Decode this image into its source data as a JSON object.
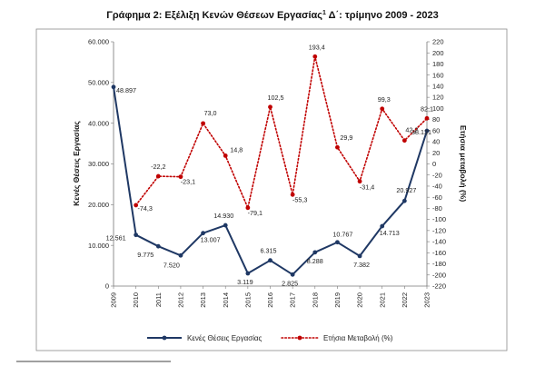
{
  "chart_data": {
    "type": "line",
    "title": "Γράφημα 2: Εξέλιξη Κενών Θέσεων Εργασίας",
    "title_sup": "1",
    "title_tail": " Δ΄: τρίμηνο 2009 - 2023",
    "ylabel": "Κενές Θέσεις Εργασίας",
    "y2label": "Ετήσια μεταβολή (%)",
    "x": [
      "2009",
      "2010",
      "2011",
      "2012",
      "2013",
      "2014",
      "2015",
      "2016",
      "2017",
      "2018",
      "2019",
      "2020",
      "2021",
      "2022",
      "2023"
    ],
    "ylim": [
      0,
      60000
    ],
    "y_ticks": [
      0,
      10000,
      20000,
      30000,
      40000,
      50000,
      60000
    ],
    "y_tick_labels": [
      "0",
      "10.000",
      "20.000",
      "30.000",
      "40.000",
      "50.000",
      "60.000"
    ],
    "y2lim": [
      -220,
      220
    ],
    "y2_ticks": [
      -220,
      -200,
      -180,
      -160,
      -140,
      -120,
      -100,
      -80,
      -60,
      -40,
      -20,
      0,
      20,
      40,
      60,
      80,
      100,
      120,
      140,
      160,
      180,
      200,
      220
    ],
    "y2_tick_labels": [
      "-220",
      "-200",
      "-180",
      "-160",
      "-140",
      "-120",
      "-100",
      "-80",
      "-60",
      "-40",
      "-20",
      "0",
      "20",
      "40",
      "60",
      "80",
      "100",
      "120",
      "140",
      "160",
      "180",
      "200",
      "220"
    ],
    "grid": false,
    "legend_position": "bottom",
    "series": [
      {
        "name": "Κενές Θέσεις Εργασίας",
        "axis": "left",
        "style": "solid",
        "color": "#1f3864",
        "values": [
          48897,
          12561,
          9775,
          7520,
          13007,
          14930,
          3119,
          6315,
          2825,
          8288,
          10767,
          7382,
          14713,
          20927,
          38131
        ],
        "labels": [
          "48.897",
          "12.561",
          "9.775",
          "7.520",
          "13.007",
          "14.930",
          "3.119",
          "6.315",
          "2.825",
          "8.288",
          "10.767",
          "7.382",
          "14.713",
          "20.927",
          "38.131"
        ]
      },
      {
        "name": "Ετήσια Μεταβολή  (%)",
        "axis": "right",
        "style": "dotted",
        "color": "#c00000",
        "values": [
          null,
          -74.3,
          -22.2,
          -23.1,
          73.0,
          14.8,
          -79.1,
          102.5,
          -55.3,
          193.4,
          29.9,
          -31.4,
          99.3,
          42.2,
          82.1
        ],
        "labels": [
          "",
          "-74,3",
          "-22,2",
          "-23,1",
          "73,0",
          "14,8",
          "-79,1",
          "102,5",
          "-55,3",
          "193,4",
          "29,9",
          "-31,4",
          "99,3",
          "42,2",
          "82,1"
        ]
      }
    ]
  }
}
